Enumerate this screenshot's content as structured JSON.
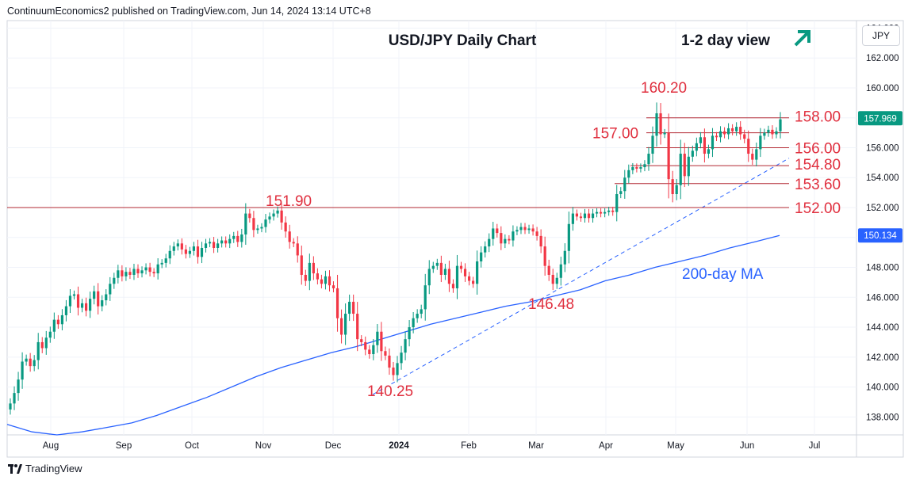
{
  "publisher": "ContinuumEconomics2 published on TradingView.com, Jun 14, 2024 13:14 UTC+8",
  "footer": "TradingView",
  "currency": "JPY",
  "chart_data": {
    "type": "candlestick",
    "title": "USD/JPY Daily Chart",
    "subtitle": "1-2 day view",
    "ylim": [
      136.8,
      164.5
    ],
    "y_ticks": [
      "138.000",
      "140.000",
      "142.000",
      "144.000",
      "146.000",
      "148.000",
      "150.000",
      "152.000",
      "154.000",
      "156.000",
      "158.000",
      "160.000",
      "162.000",
      "164.000"
    ],
    "x_labels": [
      "Aug",
      "Sep",
      "Oct",
      "Nov",
      "Dec",
      "2024",
      "Feb",
      "Mar",
      "Apr",
      "May",
      "Jun",
      "Jul"
    ],
    "last_price": "157.969",
    "ma_value": "150.134",
    "ma_label": "200-day MA",
    "levels": [
      {
        "label": "158.00",
        "value": 158.0
      },
      {
        "label": "157.00",
        "value": 157.0
      },
      {
        "label": "156.00",
        "value": 156.0
      },
      {
        "label": "154.80",
        "value": 154.8
      },
      {
        "label": "153.60",
        "value": 153.6
      },
      {
        "label": "152.00",
        "value": 152.0
      }
    ],
    "annotations": [
      {
        "label": "151.90",
        "value": 151.9
      },
      {
        "label": "160.20",
        "value": 160.2
      },
      {
        "label": "146.48",
        "value": 146.48
      },
      {
        "label": "140.25",
        "value": 140.25
      }
    ],
    "closes": [
      138.9,
      139.6,
      140.5,
      141.7,
      141.9,
      141.4,
      141.8,
      143.0,
      142.6,
      143.3,
      143.7,
      144.5,
      144.2,
      144.8,
      145.4,
      146.1,
      146.2,
      145.3,
      145.6,
      145.1,
      145.9,
      146.4,
      145.4,
      145.8,
      146.2,
      146.9,
      147.3,
      147.8,
      147.4,
      147.7,
      147.5,
      147.9,
      147.6,
      147.8,
      148.0,
      147.7,
      147.6,
      148.2,
      148.3,
      148.6,
      149.1,
      149.4,
      149.6,
      149.2,
      148.9,
      149.1,
      149.4,
      148.7,
      149.3,
      149.6,
      149.7,
      149.3,
      149.6,
      149.8,
      149.6,
      149.9,
      150.1,
      149.7,
      150.2,
      151.6,
      151.3,
      150.5,
      150.6,
      150.7,
      151.2,
      151.4,
      151.6,
      151.8,
      151.0,
      150.4,
      149.7,
      149.6,
      148.8,
      147.5,
      147.1,
      148.3,
      147.6,
      147.2,
      146.9,
      147.4,
      146.8,
      146.6,
      144.6,
      143.5,
      144.9,
      145.7,
      144.9,
      143.2,
      143.0,
      142.5,
      142.2,
      142.8,
      143.7,
      142.4,
      142.1,
      141.3,
      140.8,
      141.6,
      142.3,
      143.2,
      144.0,
      144.6,
      144.9,
      145.2,
      146.8,
      147.9,
      148.1,
      148.3,
      147.5,
      147.9,
      146.9,
      146.6,
      148.1,
      147.9,
      147.4,
      147.1,
      146.9,
      148.4,
      149.0,
      149.4,
      149.9,
      150.6,
      150.3,
      149.6,
      149.9,
      149.8,
      150.4,
      150.5,
      150.7,
      150.5,
      150.6,
      150.4,
      150.1,
      149.4,
      148.1,
      147.5,
      146.9,
      147.3,
      148.2,
      149.1,
      150.9,
      151.6,
      151.4,
      151.3,
      151.6,
      151.3,
      151.6,
      151.7,
      151.6,
      151.7,
      151.8,
      151.7,
      152.9,
      153.1,
      154.0,
      154.5,
      154.7,
      154.6,
      154.7,
      154.9,
      155.6,
      156.8,
      158.3,
      156.9,
      157.0,
      153.9,
      152.9,
      153.5,
      155.6,
      154.1,
      155.4,
      155.8,
      156.3,
      156.7,
      155.6,
      155.9,
      156.8,
      156.7,
      157.1,
      156.9,
      157.3,
      157.1,
      157.4,
      156.9,
      156.6,
      155.6,
      155.2,
      155.9,
      156.8,
      157.0,
      157.2,
      156.9,
      157.1,
      157.9
    ],
    "ma_values": [
      137.5,
      137.0,
      136.8,
      137.0,
      137.3,
      137.6,
      138.1,
      138.7,
      139.3,
      140.0,
      140.7,
      141.3,
      141.8,
      142.3,
      142.7,
      143.2,
      143.7,
      144.2,
      144.6,
      145.0,
      145.4,
      145.7,
      146.1,
      146.5,
      147.1,
      147.5,
      148.0,
      148.4,
      148.8,
      149.3,
      149.7,
      150.134
    ],
    "candles_note": "OHLC approximated"
  }
}
